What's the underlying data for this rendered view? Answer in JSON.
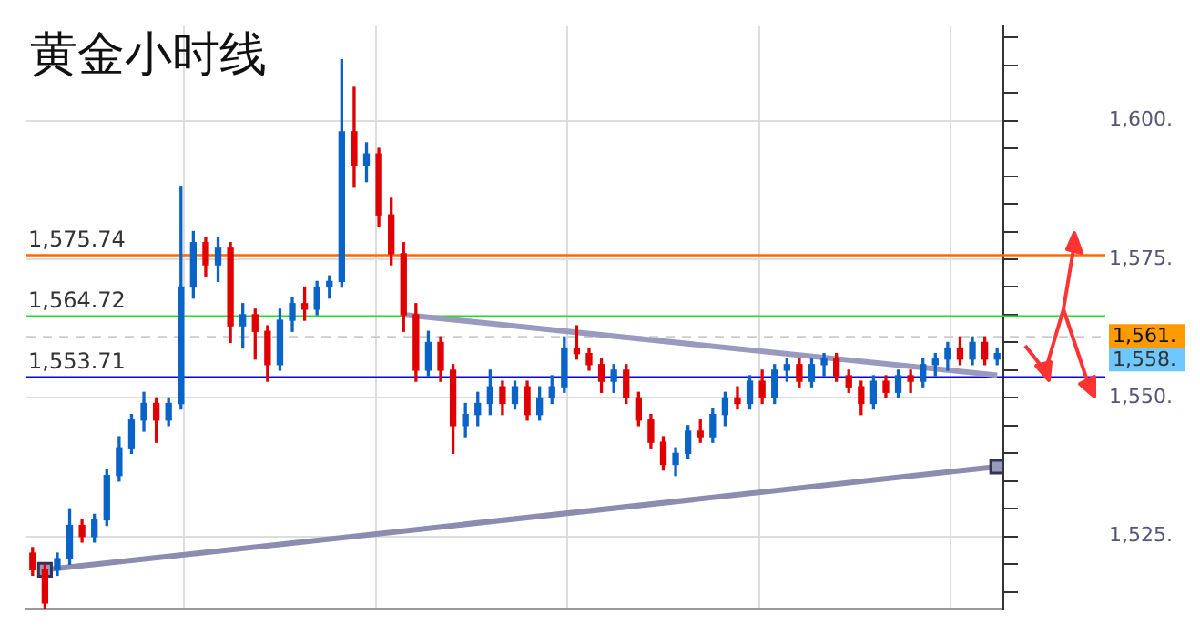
{
  "chart_data": {
    "type": "candlestick",
    "title": "黄金小时线",
    "categories": [
      null,
      null,
      null,
      null,
      null,
      null,
      null,
      null,
      null,
      null,
      null,
      null,
      null,
      null,
      null,
      null,
      null,
      null,
      null,
      null,
      null,
      null,
      null,
      null,
      null,
      null,
      null,
      null,
      null,
      null,
      null,
      null,
      null,
      null,
      null,
      null,
      null,
      null,
      null,
      null,
      null,
      null,
      null,
      null,
      null,
      null,
      null,
      null,
      null,
      null,
      null,
      null,
      null,
      null,
      null,
      null,
      null,
      null,
      null,
      null,
      null,
      null,
      null,
      null,
      null,
      null,
      null,
      null,
      null,
      null,
      null,
      null,
      null,
      null,
      null,
      null,
      null,
      null,
      null
    ],
    "ohlc": [
      [
        1522,
        1523,
        1518,
        1519
      ],
      [
        1519,
        1520,
        1512,
        1513
      ],
      [
        1519,
        1522,
        1518,
        1521
      ],
      [
        1521,
        1530,
        1520,
        1527
      ],
      [
        1527,
        1528,
        1524,
        1525
      ],
      [
        1525,
        1529,
        1524,
        1528
      ],
      [
        1528,
        1537,
        1527,
        1536
      ],
      [
        1536,
        1543,
        1535,
        1541
      ],
      [
        1541,
        1547,
        1540,
        1546
      ],
      [
        1546,
        1551,
        1544,
        1549
      ],
      [
        1549,
        1550,
        1542,
        1546
      ],
      [
        1546,
        1550,
        1545,
        1549
      ],
      [
        1549,
        1588,
        1548,
        1570
      ],
      [
        1570,
        1580,
        1568,
        1578
      ],
      [
        1578,
        1579,
        1572,
        1574
      ],
      [
        1574,
        1579,
        1571,
        1577
      ],
      [
        1577,
        1578,
        1560,
        1563
      ],
      [
        1563,
        1567,
        1559,
        1565
      ],
      [
        1565,
        1566,
        1557,
        1562
      ],
      [
        1562,
        1563,
        1553,
        1556
      ],
      [
        1556,
        1566,
        1555,
        1564
      ],
      [
        1564,
        1568,
        1562,
        1567
      ],
      [
        1567,
        1570,
        1564,
        1566
      ],
      [
        1566,
        1571,
        1565,
        1570
      ],
      [
        1570,
        1572,
        1568,
        1571
      ],
      [
        1571,
        1611,
        1570,
        1598
      ],
      [
        1598,
        1606,
        1588,
        1592
      ],
      [
        1592,
        1596,
        1589,
        1594
      ],
      [
        1594,
        1595,
        1581,
        1583
      ],
      [
        1583,
        1586,
        1574,
        1576
      ],
      [
        1576,
        1578,
        1562,
        1565
      ],
      [
        1565,
        1567,
        1553,
        1555
      ],
      [
        1555,
        1562,
        1554,
        1560
      ],
      [
        1560,
        1561,
        1553,
        1555
      ],
      [
        1555,
        1556,
        1540,
        1545
      ],
      [
        1545,
        1549,
        1543,
        1547
      ],
      [
        1547,
        1551,
        1545,
        1549
      ],
      [
        1549,
        1555,
        1547,
        1552
      ],
      [
        1552,
        1553,
        1547,
        1549
      ],
      [
        1549,
        1553,
        1548,
        1552
      ],
      [
        1552,
        1553,
        1546,
        1547
      ],
      [
        1547,
        1552,
        1546,
        1550
      ],
      [
        1550,
        1554,
        1549,
        1552
      ],
      [
        1552,
        1561,
        1551,
        1559
      ],
      [
        1559,
        1563,
        1557,
        1558
      ],
      [
        1558,
        1559,
        1555,
        1556
      ],
      [
        1556,
        1557,
        1551,
        1553
      ],
      [
        1553,
        1556,
        1551,
        1555
      ],
      [
        1555,
        1556,
        1549,
        1550
      ],
      [
        1550,
        1551,
        1545,
        1546
      ],
      [
        1546,
        1547,
        1541,
        1542
      ],
      [
        1542,
        1543,
        1537,
        1538
      ],
      [
        1538,
        1541,
        1536,
        1540
      ],
      [
        1540,
        1545,
        1539,
        1544
      ],
      [
        1544,
        1546,
        1542,
        1543
      ],
      [
        1543,
        1548,
        1542,
        1547
      ],
      [
        1547,
        1551,
        1545,
        1550
      ],
      [
        1550,
        1552,
        1548,
        1549
      ],
      [
        1549,
        1554,
        1548,
        1553
      ],
      [
        1553,
        1555,
        1549,
        1550
      ],
      [
        1550,
        1556,
        1549,
        1555
      ],
      [
        1555,
        1557,
        1553,
        1556
      ],
      [
        1556,
        1557,
        1552,
        1553
      ],
      [
        1553,
        1557,
        1552,
        1556
      ],
      [
        1556,
        1558,
        1554,
        1557
      ],
      [
        1557,
        1558,
        1553,
        1554
      ],
      [
        1554,
        1555,
        1551,
        1552
      ],
      [
        1552,
        1553,
        1547,
        1549
      ],
      [
        1549,
        1554,
        1548,
        1553
      ],
      [
        1553,
        1554,
        1550,
        1551
      ],
      [
        1551,
        1555,
        1550,
        1554
      ],
      [
        1554,
        1555,
        1551,
        1553
      ],
      [
        1553,
        1557,
        1552,
        1556
      ],
      [
        1556,
        1558,
        1554,
        1557
      ],
      [
        1557,
        1560,
        1555,
        1559
      ],
      [
        1559,
        1561,
        1556,
        1557
      ],
      [
        1557,
        1561,
        1556,
        1560
      ],
      [
        1560,
        1561,
        1556,
        1557
      ],
      [
        1557,
        1559,
        1556,
        1558
      ]
    ],
    "colors": [
      "#e00000",
      "#e00000",
      "#0a64c8",
      "#0a64c8",
      "#e00000",
      "#0a64c8",
      "#0a64c8",
      "#0a64c8",
      "#0a64c8",
      "#0a64c8",
      "#e00000",
      "#0a64c8",
      "#0a64c8",
      "#0a64c8",
      "#e00000",
      "#0a64c8",
      "#e00000",
      "#0a64c8",
      "#e00000",
      "#e00000",
      "#0a64c8",
      "#0a64c8",
      "#e00000",
      "#0a64c8",
      "#0a64c8",
      "#0a64c8",
      "#e00000",
      "#0a64c8",
      "#e00000",
      "#e00000",
      "#e00000",
      "#e00000",
      "#0a64c8",
      "#e00000",
      "#e00000",
      "#0a64c8",
      "#0a64c8",
      "#0a64c8",
      "#e00000",
      "#0a64c8",
      "#e00000",
      "#0a64c8",
      "#0a64c8",
      "#0a64c8",
      "#e00000",
      "#e00000",
      "#e00000",
      "#0a64c8",
      "#e00000",
      "#e00000",
      "#e00000",
      "#e00000",
      "#0a64c8",
      "#0a64c8",
      "#e00000",
      "#0a64c8",
      "#0a64c8",
      "#e00000",
      "#0a64c8",
      "#e00000",
      "#0a64c8",
      "#0a64c8",
      "#e00000",
      "#0a64c8",
      "#0a64c8",
      "#e00000",
      "#e00000",
      "#e00000",
      "#0a64c8",
      "#e00000",
      "#0a64c8",
      "#e00000",
      "#0a64c8",
      "#0a64c8",
      "#0a64c8",
      "#e00000",
      "#0a64c8",
      "#e00000",
      "#0a64c8"
    ],
    "series": [
      {
        "type": "line",
        "color": "#8c8cb0",
        "marker": "square",
        "values": [
          null,
          1519,
          null,
          null,
          null,
          null,
          null,
          null,
          null,
          null,
          null,
          null,
          null,
          null,
          null,
          null,
          null,
          null,
          null,
          null,
          null,
          null,
          null,
          null,
          null,
          null,
          null,
          null,
          null,
          null,
          null,
          null,
          null,
          null,
          null,
          null,
          null,
          null,
          null,
          null,
          null,
          null,
          null,
          null,
          null,
          null,
          null,
          null,
          null,
          null,
          null,
          null,
          null,
          null,
          null,
          null,
          null,
          null,
          null,
          null,
          null,
          null,
          null,
          null,
          null,
          null,
          null,
          null,
          null,
          null,
          null,
          null,
          null,
          null,
          null,
          null,
          null,
          null,
          1537.6
        ]
      },
      {
        "type": "line",
        "color": "#9a9ac0",
        "values": [
          null,
          null,
          null,
          null,
          null,
          null,
          null,
          null,
          null,
          null,
          null,
          null,
          null,
          null,
          null,
          null,
          null,
          null,
          null,
          null,
          null,
          null,
          null,
          null,
          null,
          null,
          null,
          null,
          null,
          null,
          1565,
          null,
          null,
          null,
          null,
          null,
          null,
          null,
          null,
          null,
          null,
          null,
          null,
          null,
          null,
          null,
          null,
          null,
          null,
          null,
          null,
          null,
          null,
          null,
          null,
          null,
          null,
          null,
          null,
          null,
          null,
          null,
          null,
          null,
          null,
          null,
          null,
          null,
          null,
          null,
          null,
          null,
          null,
          null,
          null,
          null,
          null,
          null,
          1554.1
        ]
      }
    ],
    "ylim": [
      1512,
      1617
    ],
    "yticks": [
      {
        "value": 1515,
        "label": null
      },
      {
        "value": 1520,
        "label": null
      },
      {
        "value": 1525,
        "label": "1,525."
      },
      {
        "value": 1530,
        "label": null
      },
      {
        "value": 1535,
        "label": null
      },
      {
        "value": 1540,
        "label": null
      },
      {
        "value": 1545,
        "label": null
      },
      {
        "value": 1550,
        "label": "1,550."
      },
      {
        "value": 1555,
        "label": null
      },
      {
        "value": 1560,
        "label": null
      },
      {
        "value": 1565,
        "label": null
      },
      {
        "value": 1570,
        "label": null
      },
      {
        "value": 1575,
        "label": "1,575."
      },
      {
        "value": 1580,
        "label": null
      },
      {
        "value": 1585,
        "label": null
      },
      {
        "value": 1590,
        "label": null
      },
      {
        "value": 1595,
        "label": null
      },
      {
        "value": 1600,
        "label": "1,600."
      },
      {
        "value": 1605,
        "label": null
      },
      {
        "value": 1610,
        "label": null
      },
      {
        "value": 1615,
        "label": null
      }
    ],
    "tick_labels": "y",
    "grid": true,
    "ref_lines": [
      {
        "axis": "y",
        "value": 1575.74,
        "label": "1,575.74",
        "color": "#ff6a00"
      },
      {
        "axis": "y",
        "value": 1564.72,
        "label": "1,564.72",
        "color": "#22dd22"
      },
      {
        "axis": "y",
        "value": 1553.71,
        "label": "1,553.71",
        "color": "#0000ff"
      },
      {
        "axis": "y",
        "value": 1561,
        "label": "1,561.",
        "color": "#cccccc",
        "line_style": "dashed"
      }
    ],
    "annotations": [
      "1,558."
    ]
  }
}
